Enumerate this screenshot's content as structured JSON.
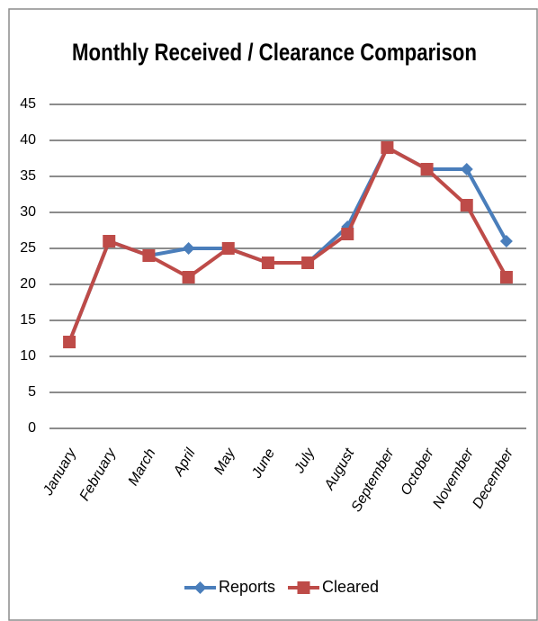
{
  "chart_data": {
    "type": "line",
    "title": "Monthly Received / Clearance Comparison",
    "categories": [
      "January",
      "February",
      "March",
      "April",
      "May",
      "June",
      "July",
      "August",
      "September",
      "October",
      "November",
      "December"
    ],
    "series": [
      {
        "name": "Reports",
        "color": "#4a7ebb",
        "marker": "diamond",
        "values": [
          12,
          26,
          24,
          25,
          25,
          23,
          23,
          28,
          39,
          36,
          36,
          26
        ]
      },
      {
        "name": "Cleared",
        "color": "#be4b48",
        "marker": "square",
        "values": [
          12,
          26,
          24,
          21,
          25,
          23,
          23,
          27,
          39,
          36,
          31,
          21
        ]
      }
    ],
    "ylim": [
      0,
      45
    ],
    "yticks": [
      0,
      5,
      10,
      15,
      20,
      25,
      30,
      35,
      40,
      45
    ],
    "grid": true,
    "legend": "bottom"
  }
}
